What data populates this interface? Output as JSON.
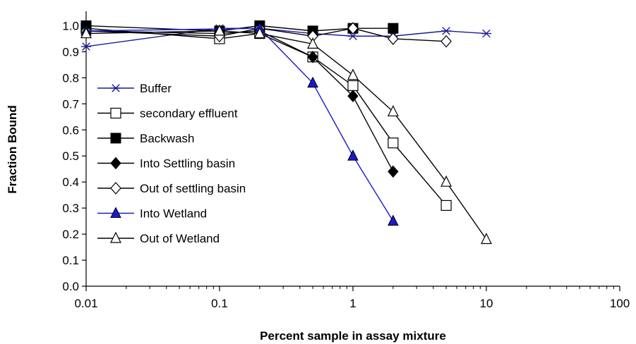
{
  "chart_data": {
    "type": "line",
    "title": "",
    "xlabel": "Percent sample in assay mixture",
    "ylabel": "Fraction Bound",
    "xscale": "log",
    "xlim": [
      0.01,
      100
    ],
    "ylim": [
      0.0,
      1.05
    ],
    "x_ticks": [
      "0.01",
      "0.1",
      "1",
      "10",
      "100"
    ],
    "y_ticks": [
      "0.0",
      "0.1",
      "0.2",
      "0.3",
      "0.4",
      "0.5",
      "0.6",
      "0.7",
      "0.8",
      "0.9",
      "1.0"
    ],
    "grid": false,
    "legend_position": "inside-left",
    "series": [
      {
        "name": "Buffer",
        "color": "#1a1a99",
        "marker": "asterisk",
        "x": [
          0.01,
          0.1,
          0.2,
          0.5,
          1,
          2,
          5,
          10
        ],
        "y": [
          0.92,
          0.99,
          0.99,
          0.97,
          0.96,
          0.96,
          0.98,
          0.97
        ]
      },
      {
        "name": "secondary effluent",
        "color": "#000000",
        "marker": "square-open",
        "x": [
          0.01,
          0.1,
          0.2,
          0.5,
          1,
          2,
          5
        ],
        "y": [
          0.99,
          0.95,
          0.97,
          0.88,
          0.77,
          0.55,
          0.31
        ]
      },
      {
        "name": "Backwash",
        "color": "#000000",
        "marker": "square-filled",
        "x": [
          0.01,
          0.1,
          0.2,
          0.5,
          1,
          2
        ],
        "y": [
          1.0,
          0.98,
          1.0,
          0.98,
          0.99,
          0.99
        ]
      },
      {
        "name": "Into Settling basin",
        "color": "#000000",
        "marker": "diamond-filled",
        "x": [
          0.01,
          0.1,
          0.2,
          0.5,
          1,
          2
        ],
        "y": [
          0.98,
          0.97,
          0.98,
          0.88,
          0.73,
          0.44
        ]
      },
      {
        "name": "Out of settling basin",
        "color": "#000000",
        "marker": "diamond-open",
        "x": [
          0.01,
          0.1,
          0.2,
          0.5,
          1,
          2,
          5
        ],
        "y": [
          0.98,
          0.96,
          0.99,
          0.96,
          0.99,
          0.95,
          0.94
        ]
      },
      {
        "name": "Into Wetland",
        "color": "#1a1acc",
        "marker": "triangle-filled",
        "x": [
          0.01,
          0.2,
          0.5,
          1,
          2
        ],
        "y": [
          0.98,
          0.99,
          0.78,
          0.5,
          0.25
        ]
      },
      {
        "name": "Out of Wetland",
        "color": "#000000",
        "marker": "triangle-open",
        "x": [
          0.01,
          0.1,
          0.2,
          0.5,
          1,
          2,
          5,
          10
        ],
        "y": [
          0.97,
          0.98,
          0.97,
          0.93,
          0.81,
          0.67,
          0.4,
          0.18
        ]
      }
    ]
  }
}
